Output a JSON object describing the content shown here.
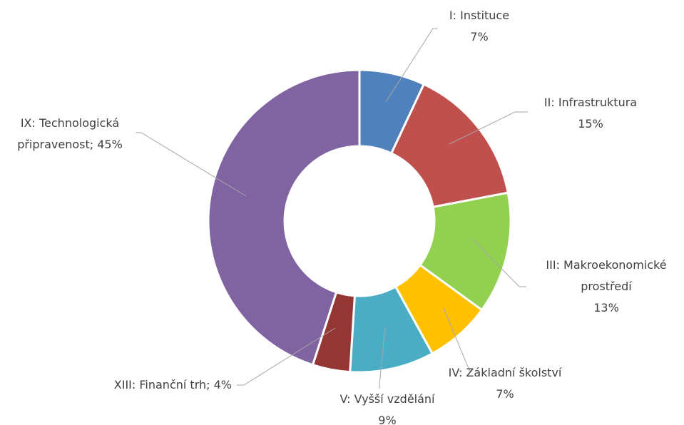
{
  "chart_data": {
    "type": "donut",
    "categories": [
      "I: Instituce",
      "II: Infrastruktura",
      "III: Makroekonomické prostředí",
      "IV: Základní školství",
      "V: Vyšší vzdělání",
      "XIII: Finanční trh",
      "IX: Technologická připravenost"
    ],
    "values": [
      7,
      15,
      13,
      7,
      9,
      4,
      45
    ],
    "value_labels": [
      "7%",
      "15%",
      "13%",
      "7%",
      "9%",
      "4%",
      "45%"
    ],
    "label_separator": "; ",
    "colors": [
      "#4f81bd",
      "#c0504d",
      "#92d050",
      "#ffc000",
      "#4bacc6",
      "#943634",
      "#8064a2"
    ]
  }
}
